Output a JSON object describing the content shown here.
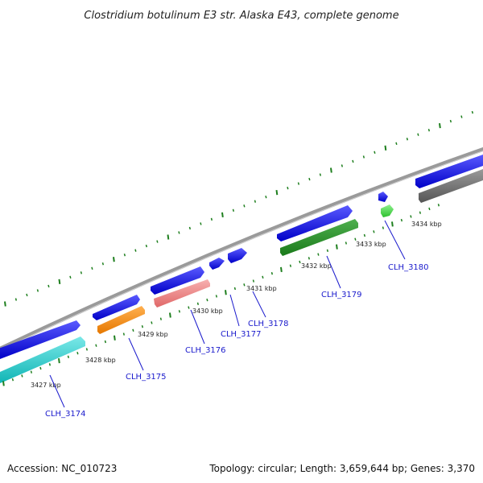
{
  "title": "Clostridium botulinum E3 str. Alaska E43, complete genome",
  "footer": {
    "accession": "Accession: NC_010723",
    "stats": "Topology: circular; Length: 3,659,644 bp; Genes: 3,370"
  },
  "scale_labels": [
    {
      "id": "kbp-3427",
      "text": "3427 kbp"
    },
    {
      "id": "kbp-3428",
      "text": "3428 kbp"
    },
    {
      "id": "kbp-3429",
      "text": "3429 kbp"
    },
    {
      "id": "kbp-3430",
      "text": "3430 kbp"
    },
    {
      "id": "kbp-3431",
      "text": "3431 kbp"
    },
    {
      "id": "kbp-3432",
      "text": "3432 kbp"
    },
    {
      "id": "kbp-3433",
      "text": "3433 kbp"
    },
    {
      "id": "kbp-3434",
      "text": "3434 kbp"
    }
  ],
  "gene_labels": [
    {
      "id": "clh-3174",
      "text": "CLH_3174"
    },
    {
      "id": "clh-3175",
      "text": "CLH_3175"
    },
    {
      "id": "clh-3176",
      "text": "CLH_3176"
    },
    {
      "id": "clh-3177",
      "text": "CLH_3177"
    },
    {
      "id": "clh-3178",
      "text": "CLH_3178"
    },
    {
      "id": "clh-3179",
      "text": "CLH_3179"
    },
    {
      "id": "clh-3180",
      "text": "CLH_3180"
    }
  ],
  "colors": {
    "backbone": "#8c8c8c",
    "forward_strand": "#1515e6",
    "label_blue": "#1a1acc",
    "tick_green": "#1e7f1e",
    "cyan": "#19c8c8",
    "orange": "#ff8c00",
    "pink": "#f08080",
    "dark_green": "#228b22",
    "light_green": "#3dd23d",
    "gray": "#666666"
  }
}
